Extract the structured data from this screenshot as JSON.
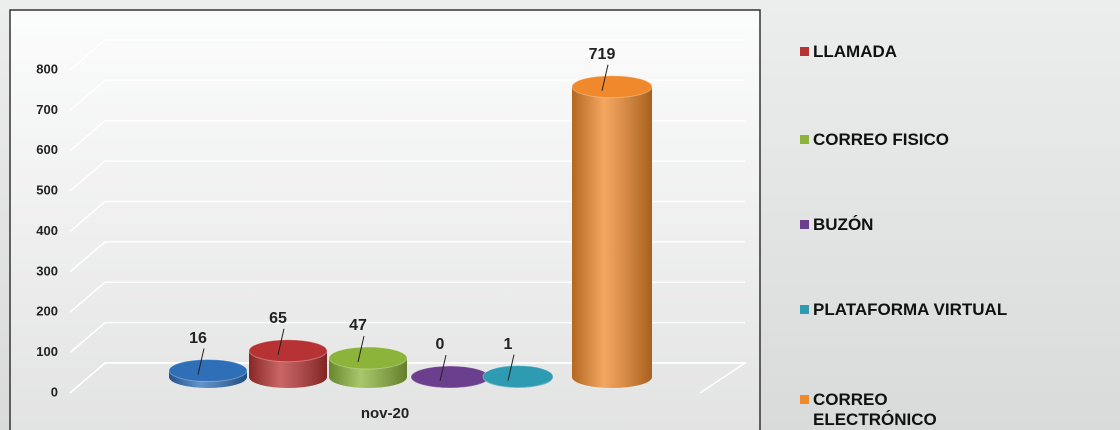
{
  "chart_data": {
    "type": "bar3d",
    "categories": [
      "nov-20"
    ],
    "series": [
      {
        "name": null,
        "color": "#2f6fb8",
        "values": [
          16
        ]
      },
      {
        "name": "LLAMADA",
        "color": "#b73333",
        "values": [
          65
        ]
      },
      {
        "name": "CORREO FISICO",
        "color": "#8cb43a",
        "values": [
          47
        ]
      },
      {
        "name": "BUZÓN",
        "color": "#6b3f8e",
        "values": [
          0
        ]
      },
      {
        "name": "PLATAFORMA VIRTUAL",
        "color": "#2f9bb2",
        "values": [
          1
        ]
      },
      {
        "name": "CORREO ELECTRÓNICO",
        "color": "#f0892b",
        "values": [
          719
        ]
      }
    ],
    "ylim": [
      0,
      800
    ],
    "yticks": [
      0,
      100,
      200,
      300,
      400,
      500,
      600,
      700,
      800
    ],
    "grid": true
  }
}
